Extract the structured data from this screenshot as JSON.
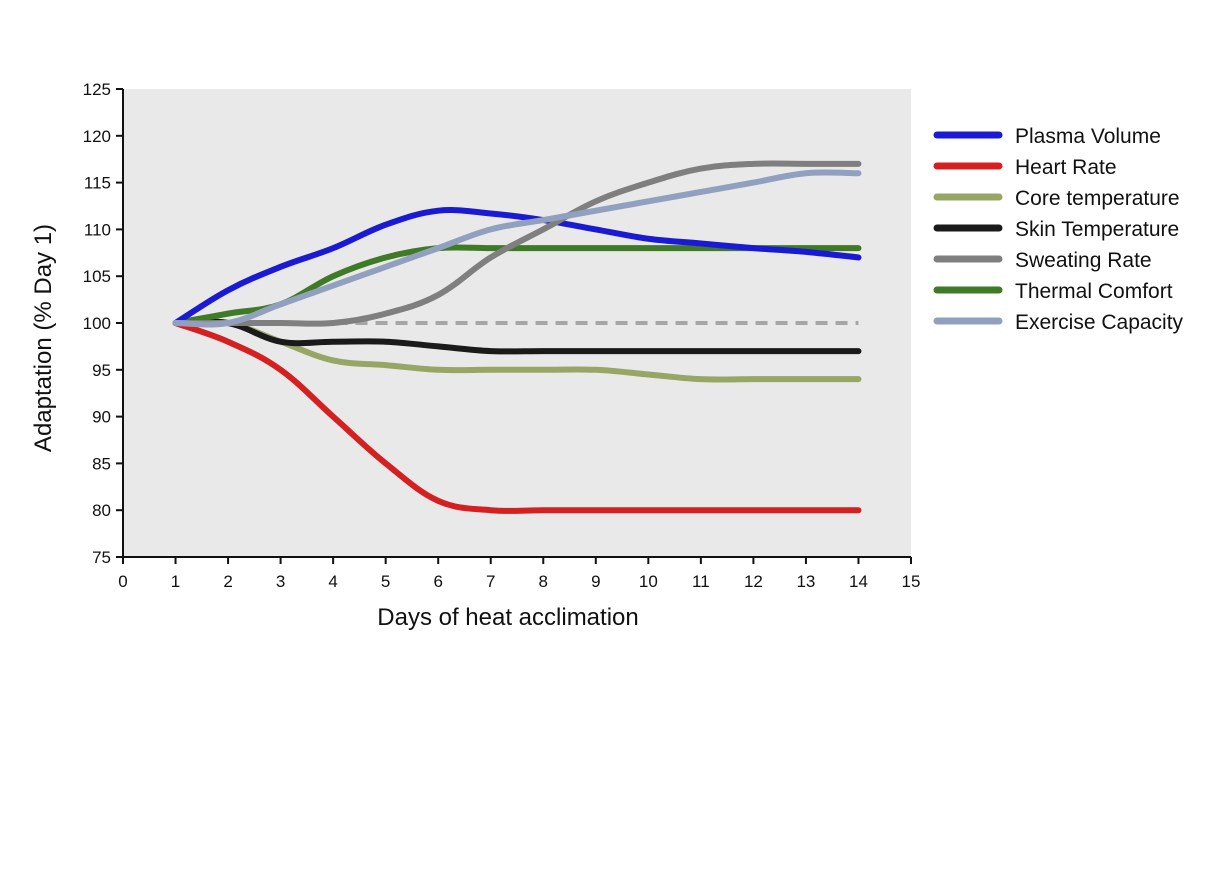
{
  "chart_data": {
    "type": "line",
    "title": "",
    "xlabel": "Days of heat acclimation",
    "ylabel": "Adaptation (% Day 1)",
    "xlim": [
      0,
      15
    ],
    "ylim": [
      75,
      125
    ],
    "x_ticks": [
      0,
      1,
      2,
      3,
      4,
      5,
      6,
      7,
      8,
      9,
      10,
      11,
      12,
      13,
      14,
      15
    ],
    "y_ticks": [
      75,
      80,
      85,
      90,
      95,
      100,
      105,
      110,
      115,
      120,
      125
    ],
    "grid": false,
    "legend_position": "right",
    "reference_line": {
      "y": 100,
      "style": "dashed",
      "color": "#a6a6a6"
    },
    "series": [
      {
        "name": "Plasma Volume",
        "color": "#1a1ad4",
        "x": [
          1,
          2,
          3,
          4,
          5,
          6,
          7,
          8,
          9,
          10,
          11,
          12,
          13,
          14
        ],
        "values": [
          100,
          103.5,
          106,
          108,
          110.5,
          112,
          111.7,
          111,
          110,
          109,
          108.5,
          108,
          107.6,
          107
        ]
      },
      {
        "name": "Heart Rate",
        "color": "#d42020",
        "x": [
          1,
          2,
          3,
          4,
          5,
          6,
          7,
          8,
          9,
          10,
          11,
          12,
          13,
          14
        ],
        "values": [
          100,
          98,
          95,
          90,
          85,
          81,
          80,
          80,
          80,
          80,
          80,
          80,
          80,
          80
        ]
      },
      {
        "name": "Core temperature",
        "color": "#98a665",
        "x": [
          1,
          2,
          3,
          4,
          5,
          6,
          7,
          8,
          9,
          10,
          11,
          12,
          13,
          14
        ],
        "values": [
          100,
          100,
          98,
          96,
          95.5,
          95,
          95,
          95,
          95,
          94.5,
          94,
          94,
          94,
          94
        ]
      },
      {
        "name": "Skin Temperature",
        "color": "#1a1a1a",
        "x": [
          1,
          2,
          3,
          4,
          5,
          6,
          7,
          8,
          9,
          10,
          11,
          12,
          13,
          14
        ],
        "values": [
          100,
          100,
          98,
          98,
          98,
          97.5,
          97,
          97,
          97,
          97,
          97,
          97,
          97,
          97
        ]
      },
      {
        "name": "Sweating Rate",
        "color": "#7f7f7f",
        "x": [
          1,
          2,
          3,
          4,
          5,
          6,
          7,
          8,
          9,
          10,
          11,
          12,
          13,
          14
        ],
        "values": [
          100,
          100,
          100,
          100,
          101,
          103,
          107,
          110,
          113,
          115,
          116.5,
          117,
          117,
          117
        ]
      },
      {
        "name": "Thermal Comfort",
        "color": "#3f7a26",
        "x": [
          1,
          2,
          3,
          4,
          5,
          6,
          7,
          8,
          9,
          10,
          11,
          12,
          13,
          14
        ],
        "values": [
          100,
          101,
          102,
          105,
          107,
          108,
          108,
          108,
          108,
          108,
          108,
          108,
          108,
          108
        ]
      },
      {
        "name": "Exercise Capacity",
        "color": "#92a0bf",
        "x": [
          1,
          2,
          3,
          4,
          5,
          6,
          7,
          8,
          9,
          10,
          11,
          12,
          13,
          14
        ],
        "values": [
          100,
          100,
          102,
          104,
          106,
          108,
          110,
          111,
          112,
          113,
          114,
          115,
          116,
          116
        ]
      }
    ]
  }
}
